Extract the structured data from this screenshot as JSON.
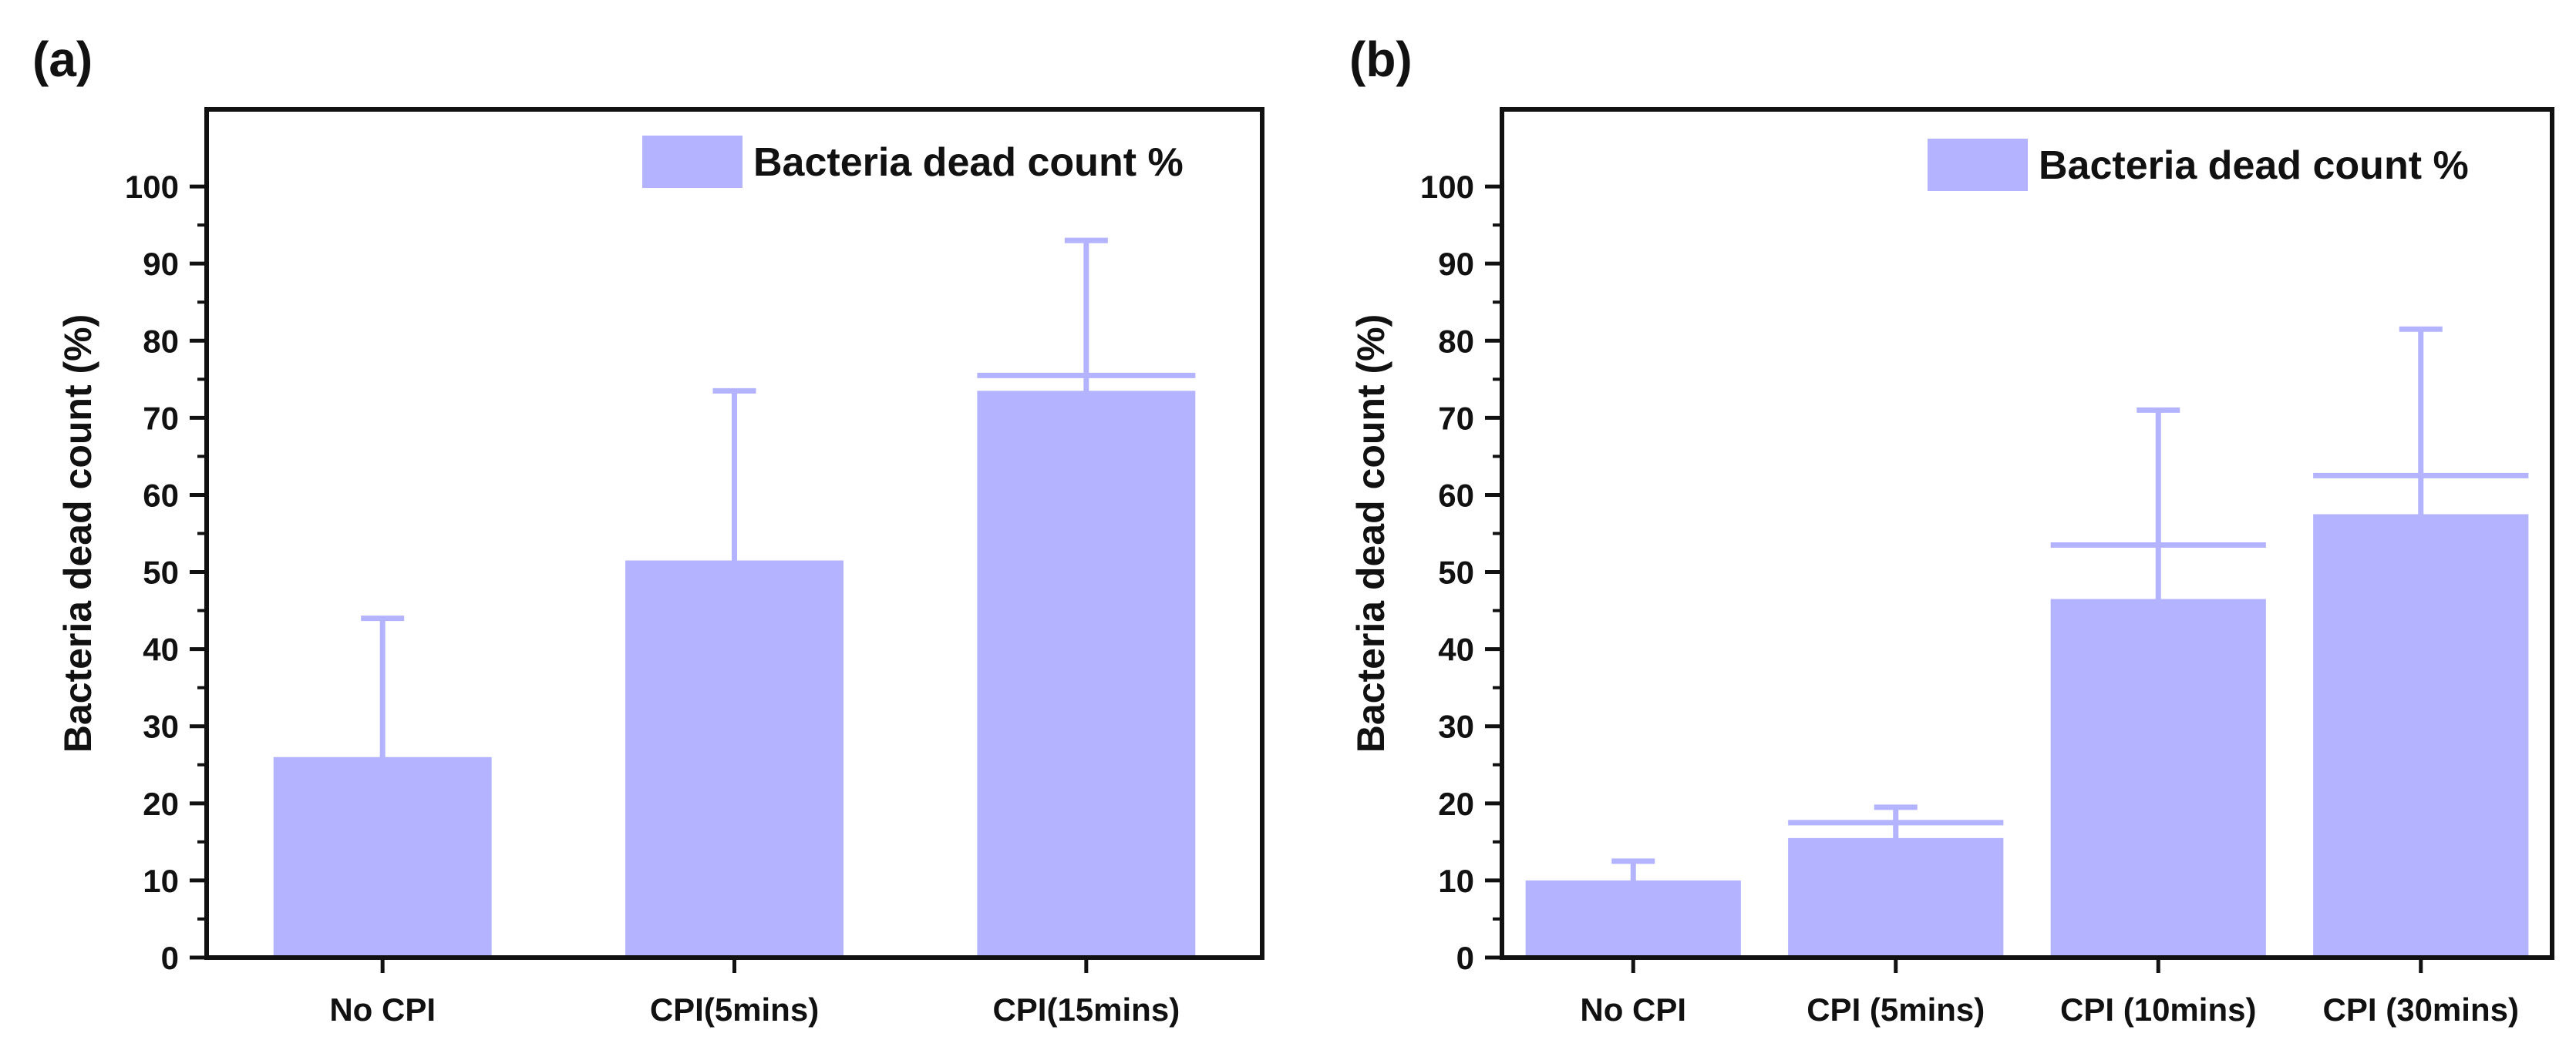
{
  "panels": [
    {
      "tag": "(a)"
    },
    {
      "tag": "(b)"
    }
  ],
  "chart_data": [
    {
      "type": "bar",
      "panel": "(a)",
      "title": "",
      "xlabel": "",
      "ylabel": "Bacteria dead count (%)",
      "ylim": [
        0,
        110
      ],
      "yticks": [
        0,
        10,
        20,
        30,
        40,
        50,
        60,
        70,
        80,
        90,
        100
      ],
      "grid": false,
      "legend": {
        "entries": [
          "Bacteria dead count %"
        ],
        "placement": "top-right"
      },
      "categories": [
        "No CPI",
        "CPI(5mins)",
        "CPI(15mins)"
      ],
      "series": [
        {
          "name": "Bacteria dead count %",
          "color": "#b3b3ff",
          "values": [
            26,
            51.5,
            73.5
          ],
          "error_upper": [
            44,
            73.5,
            93
          ],
          "error_lower": [
            26,
            51.5,
            75.5
          ]
        }
      ]
    },
    {
      "type": "bar",
      "panel": "(b)",
      "title": "",
      "xlabel": "",
      "ylabel": "Bacteria dead count (%)",
      "ylim": [
        0,
        110
      ],
      "yticks": [
        0,
        10,
        20,
        30,
        40,
        50,
        60,
        70,
        80,
        90,
        100
      ],
      "grid": false,
      "legend": {
        "entries": [
          "Bacteria dead count %"
        ],
        "placement": "top-right"
      },
      "categories": [
        "No CPI",
        "CPI (5mins)",
        "CPI (10mins)",
        "CPI (30mins)"
      ],
      "series": [
        {
          "name": "Bacteria dead count %",
          "color": "#b3b3ff",
          "values": [
            10,
            15.5,
            46.5,
            57.5
          ],
          "error_upper": [
            12.5,
            19.5,
            71,
            81.5
          ],
          "error_lower": [
            10,
            17.5,
            53.5,
            62.5
          ]
        }
      ]
    }
  ]
}
